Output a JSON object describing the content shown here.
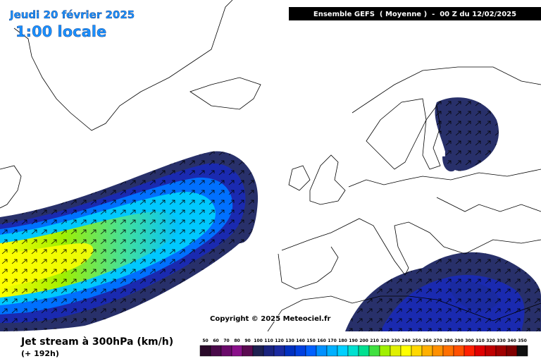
{
  "header": {
    "date": "Jeudi 20 février 2025",
    "time": "1:00 locale",
    "run": "Ensemble GEFS  ( Moyenne )  -  00 Z du 12/02/2025"
  },
  "copyright": "Copyright © 2025 Meteociel.fr",
  "footer": {
    "title": "Jet stream à 300hPa (km/h)",
    "lead": "(+ 192h)"
  },
  "legend": {
    "labels": [
      50,
      60,
      70,
      80,
      90,
      100,
      110,
      120,
      130,
      140,
      150,
      160,
      170,
      180,
      190,
      200,
      210,
      220,
      230,
      240,
      250,
      260,
      270,
      280,
      290,
      300,
      310,
      320,
      330,
      340,
      350
    ],
    "colors": [
      "#2a0a2a",
      "#4a0a4a",
      "#6a0a6a",
      "#8a108a",
      "#5a0a50",
      "#1e2050",
      "#1a237e",
      "#1a2aa0",
      "#0030c0",
      "#0040e0",
      "#0060ff",
      "#0090ff",
      "#00b0ff",
      "#00d0ff",
      "#00e0d0",
      "#00e090",
      "#40e040",
      "#a0f000",
      "#e0f000",
      "#ffff00",
      "#ffd800",
      "#ffb000",
      "#ff9000",
      "#ff7000",
      "#ff5000",
      "#ff2000",
      "#e00000",
      "#c00000",
      "#a00000",
      "#800000",
      "#101010"
    ]
  }
}
